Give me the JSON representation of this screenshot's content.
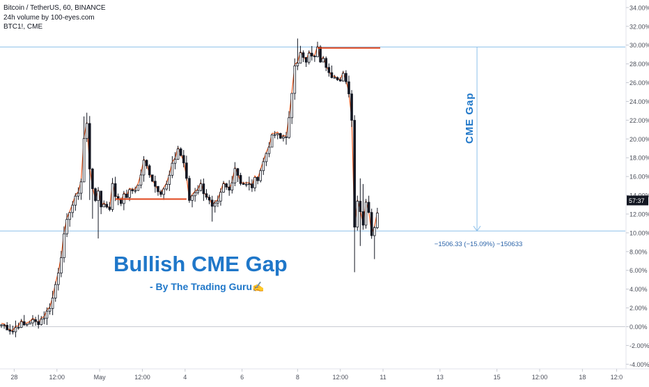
{
  "legend": {
    "symbol_line": "Bitcoin / TetherUS, 60, BINANCE",
    "volume_line": "24h volume by 100-eyes.com",
    "compare_line": "BTC1!, CME"
  },
  "annotations": {
    "headline": "Bullish CME Gap",
    "byline": "- By The Trading Guru✍",
    "vertical_label": "CME Gap",
    "measure_label": "−1506.33 (−15.09%) −150633",
    "countdown": "57:37"
  },
  "colors": {
    "candle": "#131722",
    "gap_line": "#e0451b",
    "compare_line": "#f05a1e",
    "measure": "#8dc0ea",
    "measure_text": "#2962a8",
    "headline": "#1f77c9",
    "axis_text": "#4a4e59",
    "countdown_bg": "#131722",
    "baseline": "#c8cbd3"
  },
  "chart_data": {
    "type": "candlestick",
    "y_unit": "%",
    "ylim": [
      -4,
      35
    ],
    "y_ticks": [
      "34.00%",
      "32.00%",
      "30.00%",
      "28.00%",
      "26.00%",
      "24.00%",
      "22.00%",
      "20.00%",
      "18.00%",
      "16.00%",
      "14.00%",
      "12.00%",
      "10.00%",
      "8.00%",
      "6.00%",
      "4.00%",
      "2.00%",
      "0.00%",
      "-2.00%",
      "-4.00%"
    ],
    "x_ticks": [
      "28",
      "12:00",
      "May",
      "12:00",
      "4",
      "6",
      "8",
      "12:00",
      "11",
      "13",
      "15",
      "12:00",
      "18",
      "12:0"
    ],
    "close_path": [
      [
        0,
        0.2
      ],
      [
        2,
        0.0
      ],
      [
        4,
        -0.5
      ],
      [
        6,
        0.3
      ],
      [
        8,
        0.1
      ],
      [
        10,
        0.6
      ],
      [
        12,
        0.4
      ],
      [
        14,
        0.8
      ],
      [
        16,
        1.5
      ],
      [
        18,
        3.0
      ],
      [
        20,
        6.0
      ],
      [
        22,
        9.5
      ],
      [
        24,
        12.5
      ],
      [
        26,
        13.5
      ],
      [
        28,
        15.5
      ],
      [
        29,
        20.0
      ],
      [
        30,
        21.5
      ],
      [
        31,
        17.0
      ],
      [
        32,
        15.0
      ],
      [
        33,
        13.0
      ],
      [
        34,
        14.5
      ],
      [
        35,
        13.0
      ],
      [
        36,
        13.0
      ],
      [
        38,
        12.8
      ],
      [
        39,
        15.0
      ],
      [
        40,
        14.0
      ],
      [
        42,
        13.5
      ],
      [
        44,
        14.0
      ],
      [
        46,
        14.5
      ],
      [
        48,
        15.0
      ],
      [
        50,
        17.5
      ],
      [
        52,
        16.5
      ],
      [
        54,
        15.0
      ],
      [
        56,
        14.5
      ],
      [
        58,
        15.0
      ],
      [
        60,
        17.0
      ],
      [
        62,
        19.0
      ],
      [
        64,
        17.5
      ],
      [
        66,
        13.5
      ],
      [
        68,
        14.5
      ],
      [
        70,
        15.0
      ],
      [
        72,
        14.0
      ],
      [
        74,
        12.5
      ],
      [
        76,
        13.0
      ],
      [
        78,
        15.0
      ],
      [
        80,
        14.5
      ],
      [
        82,
        17.0
      ],
      [
        84,
        15.5
      ],
      [
        86,
        15.0
      ],
      [
        88,
        15.0
      ],
      [
        90,
        16.0
      ],
      [
        92,
        17.5
      ],
      [
        94,
        19.5
      ],
      [
        96,
        20.5
      ],
      [
        98,
        20.0
      ],
      [
        100,
        20.5
      ],
      [
        101,
        22.0
      ],
      [
        102,
        24.5
      ],
      [
        103,
        28.0
      ],
      [
        104,
        28.5
      ],
      [
        105,
        29.5
      ],
      [
        106,
        28.5
      ],
      [
        107,
        28.0
      ],
      [
        108,
        29.0
      ],
      [
        109,
        28.5
      ],
      [
        110,
        29.0
      ],
      [
        111,
        29.5
      ],
      [
        112,
        28.5
      ],
      [
        113,
        29.0
      ],
      [
        114,
        28.0
      ],
      [
        115,
        27.5
      ],
      [
        116,
        26.5
      ],
      [
        118,
        26.0
      ],
      [
        120,
        27.0
      ],
      [
        121,
        26.5
      ],
      [
        122,
        25.0
      ],
      [
        123,
        22.0
      ],
      [
        123.5,
        12.0
      ],
      [
        124,
        11.0
      ],
      [
        125,
        13.5
      ],
      [
        126,
        12.5
      ],
      [
        127,
        11.0
      ],
      [
        128,
        13.0
      ],
      [
        129,
        12.5
      ],
      [
        130,
        10.0
      ],
      [
        130.5,
        8.0
      ],
      [
        131,
        11.0
      ],
      [
        132,
        12.0
      ]
    ],
    "extra_lows": [
      [
        31,
        13.5
      ],
      [
        32,
        11.5
      ],
      [
        34,
        9.4
      ],
      [
        74,
        11.2
      ],
      [
        123.5,
        5.8
      ],
      [
        125.5,
        8.6
      ],
      [
        130.5,
        7.2
      ]
    ],
    "extra_highs": [
      [
        29,
        22.4
      ],
      [
        30,
        22.8
      ],
      [
        103.8,
        30.7
      ],
      [
        111,
        30.2
      ],
      [
        126,
        15.8
      ],
      [
        127,
        15.2
      ]
    ],
    "gap_levels": [
      {
        "from": 40,
        "to": 65,
        "y": 13.6
      },
      {
        "from": 111,
        "to": 133,
        "y": 29.7
      }
    ],
    "horizontal_lines": [
      29.8,
      10.2
    ],
    "baseline": 0,
    "measure": {
      "x": 167,
      "from": 29.8,
      "to": 10.2,
      "change": -1506.33,
      "change_pct": -15.09
    },
    "last_price_pct": 12.6
  }
}
